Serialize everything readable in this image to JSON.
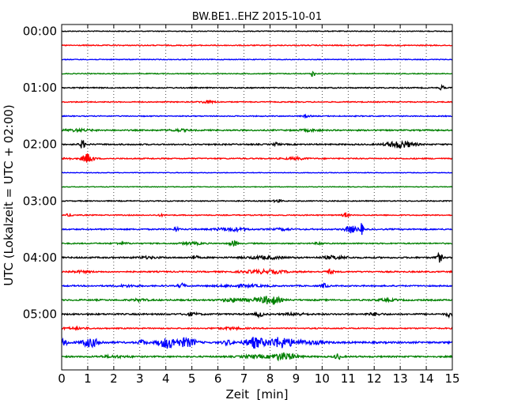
{
  "chart_data": {
    "type": "line",
    "title": "BW.BE1..EHZ 2015-10-01",
    "xlabel": "Zeit  [min]",
    "ylabel": "UTC (Lokalzeit = UTC + 02:00)",
    "xlim": [
      0,
      15
    ],
    "x_ticks": [
      0,
      1,
      2,
      3,
      4,
      5,
      6,
      7,
      8,
      9,
      10,
      11,
      12,
      13,
      14,
      15
    ],
    "x_tick_labels": [
      "0",
      "1",
      "2",
      "3",
      "4",
      "5",
      "6",
      "7",
      "8",
      "9",
      "10",
      "11",
      "12",
      "13",
      "14",
      "15"
    ],
    "y_tick_labels": [
      {
        "row": 0,
        "label": "00:00"
      },
      {
        "row": 4,
        "label": "01:00"
      },
      {
        "row": 8,
        "label": "02:00"
      },
      {
        "row": 12,
        "label": "03:00"
      },
      {
        "row": 16,
        "label": "04:00"
      },
      {
        "row": 20,
        "label": "05:00"
      }
    ],
    "row_minutes": 15,
    "grid": {
      "vertical": true,
      "style": "dotted"
    },
    "colors": [
      "#000000",
      "#ff0000",
      "#0000ff",
      "#008000"
    ],
    "series": [
      {
        "start": "00:00",
        "color": "#000000",
        "events": [],
        "noise": 0.5
      },
      {
        "start": "00:15",
        "color": "#ff0000",
        "events": [],
        "noise": 0.6
      },
      {
        "start": "00:30",
        "color": "#0000ff",
        "events": [],
        "noise": 0.5
      },
      {
        "start": "00:45",
        "color": "#008000",
        "events": [
          [
            9.65,
            4.5,
            0.05
          ]
        ],
        "noise": 0.5
      },
      {
        "start": "01:00",
        "color": "#000000",
        "events": [
          [
            14.6,
            3.5,
            0.05
          ]
        ],
        "noise": 0.7
      },
      {
        "start": "01:15",
        "color": "#ff0000",
        "events": [
          [
            5.6,
            1.5,
            0.2
          ]
        ],
        "noise": 0.6
      },
      {
        "start": "01:30",
        "color": "#0000ff",
        "events": [
          [
            9.4,
            1.2,
            0.1
          ]
        ],
        "noise": 0.6
      },
      {
        "start": "01:45",
        "color": "#008000",
        "events": [
          [
            0.6,
            1.2,
            0.4
          ],
          [
            4.5,
            1.0,
            0.3
          ],
          [
            9.5,
            1.0,
            0.3
          ]
        ],
        "noise": 0.8
      },
      {
        "start": "02:00",
        "color": "#000000",
        "events": [
          [
            0.8,
            5.0,
            0.08
          ],
          [
            8.25,
            2.0,
            0.08
          ],
          [
            13.0,
            4.5,
            0.35
          ]
        ],
        "noise": 0.8
      },
      {
        "start": "02:15",
        "color": "#ff0000",
        "events": [
          [
            0.2,
            1.5,
            0.1
          ],
          [
            1.0,
            6.0,
            0.15
          ],
          [
            9.0,
            1.2,
            0.3
          ]
        ],
        "noise": 0.7
      },
      {
        "start": "02:30",
        "color": "#0000ff",
        "events": [],
        "noise": 0.4
      },
      {
        "start": "02:45",
        "color": "#008000",
        "events": [],
        "noise": 0.4
      },
      {
        "start": "03:00",
        "color": "#000000",
        "events": [
          [
            8.3,
            2.0,
            0.1
          ]
        ],
        "noise": 0.6
      },
      {
        "start": "03:15",
        "color": "#ff0000",
        "events": [
          [
            0.3,
            1.5,
            0.1
          ],
          [
            3.8,
            1.0,
            0.1
          ],
          [
            10.9,
            3.0,
            0.08
          ]
        ],
        "noise": 0.6
      },
      {
        "start": "03:30",
        "color": "#0000ff",
        "events": [
          [
            4.4,
            3.0,
            0.06
          ],
          [
            6.5,
            2.0,
            0.4
          ],
          [
            8.5,
            1.3,
            0.2
          ],
          [
            11.1,
            4.5,
            0.15
          ],
          [
            11.5,
            7.0,
            0.06
          ]
        ],
        "noise": 0.8
      },
      {
        "start": "03:45",
        "color": "#008000",
        "events": [
          [
            2.3,
            1.0,
            0.2
          ],
          [
            5.0,
            1.3,
            0.3
          ],
          [
            6.6,
            3.5,
            0.1
          ],
          [
            9.9,
            1.5,
            0.1
          ]
        ],
        "noise": 0.7
      },
      {
        "start": "04:00",
        "color": "#000000",
        "events": [
          [
            3.3,
            1.0,
            0.3
          ],
          [
            5.1,
            2.0,
            0.1
          ],
          [
            7.8,
            1.5,
            0.5
          ],
          [
            10.5,
            2.0,
            0.3
          ],
          [
            14.5,
            5.5,
            0.08
          ]
        ],
        "noise": 0.9
      },
      {
        "start": "04:15",
        "color": "#ff0000",
        "events": [
          [
            7.8,
            2.0,
            0.6
          ],
          [
            10.3,
            2.5,
            0.1
          ],
          [
            0.7,
            1.0,
            0.3
          ]
        ],
        "noise": 0.8
      },
      {
        "start": "04:30",
        "color": "#0000ff",
        "events": [
          [
            4.6,
            3.0,
            0.1
          ],
          [
            10.1,
            3.0,
            0.08
          ],
          [
            6.9,
            1.3,
            0.6
          ],
          [
            2.5,
            1.0,
            0.3
          ]
        ],
        "noise": 0.8
      },
      {
        "start": "04:45",
        "color": "#008000",
        "events": [
          [
            3.0,
            1.2,
            0.2
          ],
          [
            6.6,
            2.0,
            0.3
          ],
          [
            7.8,
            3.0,
            0.35
          ],
          [
            8.1,
            3.0,
            0.2
          ],
          [
            12.5,
            1.0,
            0.3
          ]
        ],
        "noise": 0.9
      },
      {
        "start": "05:00",
        "color": "#000000",
        "events": [
          [
            5.0,
            1.5,
            0.2
          ],
          [
            7.6,
            3.0,
            0.1
          ],
          [
            9.0,
            1.2,
            0.3
          ],
          [
            12.0,
            1.5,
            0.2
          ],
          [
            14.9,
            3.0,
            0.1
          ]
        ],
        "noise": 0.9
      },
      {
        "start": "05:15",
        "color": "#ff0000",
        "events": [
          [
            0.5,
            1.0,
            0.4
          ],
          [
            6.5,
            1.0,
            0.4
          ]
        ],
        "noise": 0.7
      },
      {
        "start": "05:30",
        "color": "#0000ff",
        "events": [
          [
            0.1,
            3.5,
            0.1
          ],
          [
            1.1,
            5.0,
            0.25
          ],
          [
            3.1,
            3.0,
            0.1
          ],
          [
            4.1,
            7.0,
            0.25
          ],
          [
            4.7,
            4.5,
            0.15
          ],
          [
            5.0,
            3.5,
            0.15
          ],
          [
            6.4,
            2.5,
            0.15
          ],
          [
            7.4,
            6.5,
            0.25
          ],
          [
            8.4,
            6.5,
            0.35
          ],
          [
            9.5,
            2.0,
            0.4
          ]
        ],
        "noise": 1.1
      },
      {
        "start": "05:45",
        "color": "#008000",
        "events": [
          [
            8.5,
            4.5,
            0.35
          ],
          [
            10.6,
            3.5,
            0.08
          ],
          [
            7.3,
            1.5,
            0.3
          ],
          [
            2.0,
            1.0,
            0.4
          ]
        ],
        "noise": 0.9
      }
    ]
  }
}
